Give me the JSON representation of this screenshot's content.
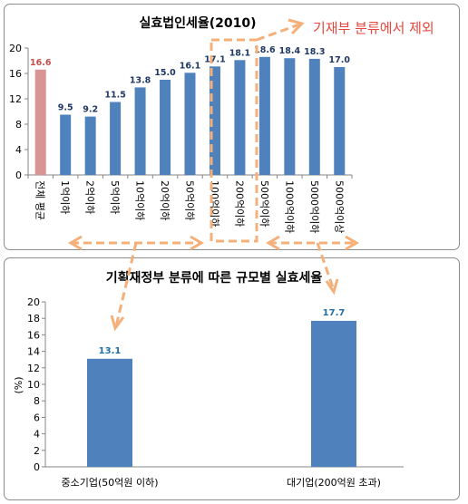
{
  "annotation": {
    "text": "기재부 분류에서 제외",
    "color": "#e8453c",
    "arrow_color": "#f5b07a"
  },
  "chart_data": [
    {
      "type": "bar",
      "title": "실효법인세율(2010)",
      "categories": [
        "전체 평균",
        "1억이하",
        "2억이하",
        "5억이하",
        "10억이하",
        "20억이하",
        "50억이하",
        "100억이하",
        "200억이하",
        "500억이하",
        "1000억이하",
        "5000억이하",
        "5000억이상"
      ],
      "values": [
        16.6,
        9.5,
        9.2,
        11.5,
        13.8,
        15.0,
        16.1,
        17.1,
        18.1,
        18.6,
        18.4,
        18.3,
        17.0
      ],
      "value_labels": [
        "16.6",
        "9.5",
        "9.2",
        "11.5",
        "13.8",
        "15.0",
        "16.1",
        "17.1",
        "18.1",
        "18.6",
        "18.4",
        "18.3",
        "17.0"
      ],
      "yticks": [
        "0",
        "4",
        "8",
        "12",
        "16",
        "20"
      ],
      "ylim": [
        0,
        20
      ],
      "colors": {
        "average": "#d99594",
        "bars": "#4f81bd",
        "average_label": "#c0504d",
        "labels": "#1f3864"
      },
      "grid": false
    },
    {
      "type": "bar",
      "title": "기획재정부 분류에 따른 규모별 실효세율",
      "categories": [
        "중소기업(50억원 이하)",
        "대기업(200억원 초과)"
      ],
      "values": [
        13.1,
        17.7
      ],
      "value_labels": [
        "13.1",
        "17.7"
      ],
      "yticks": [
        "0",
        "2",
        "4",
        "6",
        "8",
        "10",
        "12",
        "14",
        "16",
        "18",
        "20"
      ],
      "ylabel": "(%)",
      "ylim": [
        0,
        20
      ],
      "colors": {
        "bars": "#4f81bd",
        "labels": "#1f6fa8"
      },
      "grid": false
    }
  ]
}
